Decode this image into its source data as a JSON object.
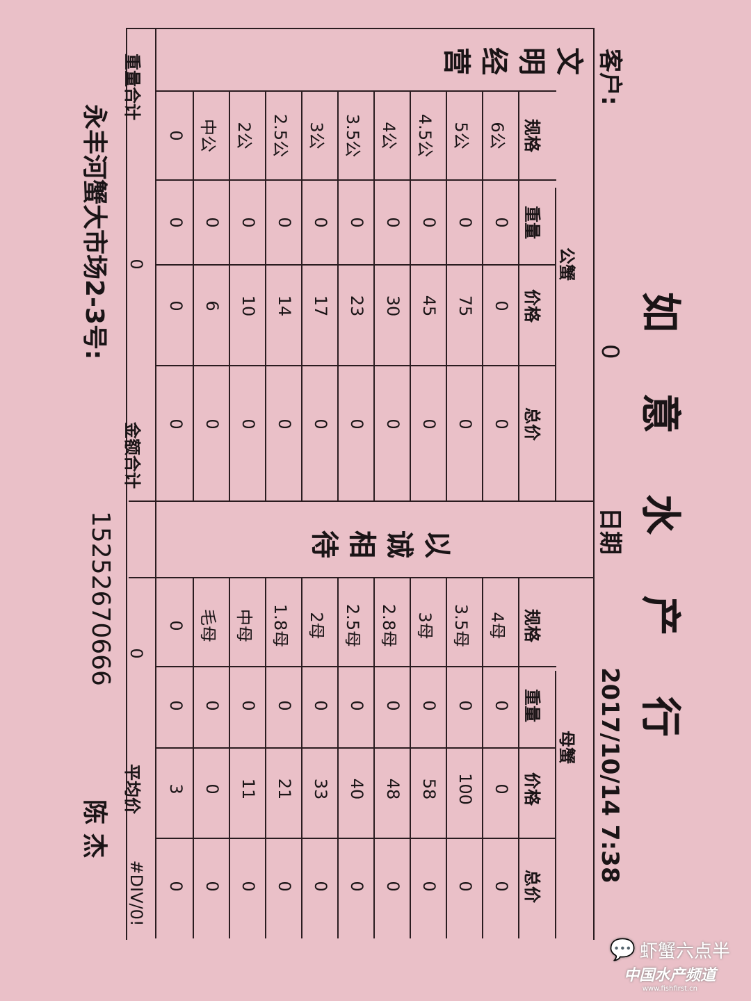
{
  "title": [
    "如",
    "意",
    "水",
    "产",
    "行"
  ],
  "customer_label": "客户:",
  "customer_value": "0",
  "date_label": "日期",
  "date_value": "2017/10/14 7:38",
  "left_slogan": "文明经营",
  "mid_slogan": "以诚相待",
  "male": {
    "group": "公蟹",
    "headers": [
      "规格",
      "重量",
      "价格",
      "总价"
    ],
    "rows": [
      [
        "6公",
        "0",
        "0",
        "0"
      ],
      [
        "5公",
        "0",
        "75",
        "0"
      ],
      [
        "4.5公",
        "0",
        "45",
        "0"
      ],
      [
        "4公",
        "0",
        "30",
        "0"
      ],
      [
        "3.5公",
        "0",
        "23",
        "0"
      ],
      [
        "3公",
        "0",
        "17",
        "0"
      ],
      [
        "2.5公",
        "0",
        "14",
        "0"
      ],
      [
        "2公",
        "0",
        "10",
        "0"
      ],
      [
        "中公",
        "0",
        "6",
        "0"
      ],
      [
        "0",
        "0",
        "0",
        "0"
      ]
    ]
  },
  "female": {
    "group": "母蟹",
    "headers": [
      "规格",
      "重量",
      "价格",
      "总价"
    ],
    "rows": [
      [
        "4母",
        "0",
        "0",
        "0"
      ],
      [
        "3.5母",
        "0",
        "100",
        "0"
      ],
      [
        "3母",
        "0",
        "58",
        "0"
      ],
      [
        "2.8母",
        "0",
        "48",
        "0"
      ],
      [
        "2.5母",
        "0",
        "40",
        "0"
      ],
      [
        "2母",
        "0",
        "33",
        "0"
      ],
      [
        "1.8母",
        "0",
        "21",
        "0"
      ],
      [
        "中母",
        "0",
        "11",
        "0"
      ],
      [
        "毛母",
        "0",
        "0",
        "0"
      ],
      [
        "0",
        "0",
        "3",
        "0"
      ]
    ]
  },
  "summary": {
    "weight_label": "重量合计",
    "weight_value": "0",
    "amount_label": "金额合计",
    "amount_value": "0",
    "avg_label": "平均价",
    "avg_value": "#DIV/0!"
  },
  "footer": {
    "address": "永丰河蟹大市场2-3号:",
    "phone": "15252670666",
    "name": "陈  杰"
  },
  "watermark": {
    "line1": "虾蟹六点半",
    "line2": "中国水产频道",
    "line3": "www.fishfirst.cn"
  }
}
